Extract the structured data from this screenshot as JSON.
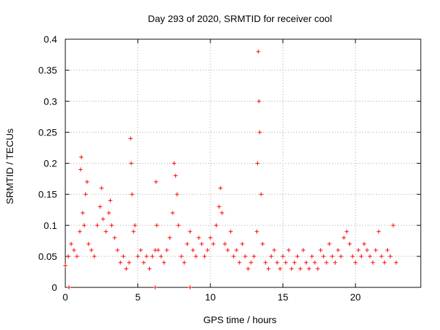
{
  "chart_data": {
    "type": "scatter",
    "title": "Day 293 of 2020, SRMTID for receiver cool",
    "xlabel": "GPS time / hours",
    "ylabel": "SRMTID / TECUs",
    "xlim": [
      0,
      24.5
    ],
    "ylim": [
      0,
      0.4
    ],
    "xticks": [
      0,
      5,
      10,
      15,
      20
    ],
    "xtick_labels": [
      "0",
      "5",
      "10",
      "15",
      "20"
    ],
    "yticks": [
      0,
      0.05,
      0.1,
      0.15,
      0.2,
      0.25,
      0.3,
      0.35,
      0.4
    ],
    "ytick_labels": [
      "0",
      "0.05",
      "0.1",
      "0.15",
      "0.2",
      "0.25",
      "0.3",
      "0.35",
      "0.4"
    ],
    "grid": true,
    "marker": "+",
    "color": "#ff0000",
    "series": [
      {
        "name": "SRMTID",
        "x": [
          0.0,
          0.2,
          0.4,
          0.6,
          0.8,
          1.0,
          1.05,
          1.1,
          1.2,
          1.3,
          1.4,
          1.5,
          1.6,
          1.8,
          2.0,
          2.2,
          2.4,
          2.5,
          2.6,
          2.8,
          3.0,
          3.1,
          3.2,
          3.4,
          3.6,
          3.8,
          4.0,
          4.2,
          4.4,
          4.5,
          4.55,
          4.6,
          4.7,
          4.8,
          5.0,
          5.2,
          5.4,
          5.6,
          5.8,
          6.0,
          6.2,
          6.25,
          6.3,
          6.4,
          6.6,
          6.8,
          7.0,
          7.2,
          7.4,
          7.5,
          7.6,
          7.7,
          7.8,
          8.0,
          8.2,
          8.4,
          8.6,
          8.8,
          9.0,
          9.2,
          9.4,
          9.6,
          9.8,
          10.0,
          10.2,
          10.4,
          10.6,
          10.7,
          10.8,
          11.0,
          11.2,
          11.4,
          11.6,
          11.8,
          12.0,
          12.2,
          12.4,
          12.6,
          12.8,
          13.0,
          13.2,
          13.25,
          13.3,
          13.35,
          13.4,
          13.5,
          13.6,
          13.8,
          14.0,
          14.2,
          14.4,
          14.6,
          14.8,
          15.0,
          15.2,
          15.4,
          15.6,
          15.8,
          16.0,
          16.2,
          16.4,
          16.6,
          16.8,
          17.0,
          17.2,
          17.4,
          17.6,
          17.8,
          18.0,
          18.2,
          18.4,
          18.6,
          18.8,
          19.0,
          19.2,
          19.4,
          19.6,
          19.8,
          20.0,
          20.2,
          20.4,
          20.6,
          20.8,
          21.0,
          21.2,
          21.4,
          21.6,
          21.8,
          22.0,
          22.2,
          22.4,
          22.6,
          22.8
        ],
        "y": [
          0.035,
          0.05,
          0.07,
          0.06,
          0.05,
          0.09,
          0.19,
          0.21,
          0.12,
          0.1,
          0.15,
          0.17,
          0.07,
          0.06,
          0.05,
          0.1,
          0.13,
          0.16,
          0.11,
          0.09,
          0.12,
          0.14,
          0.1,
          0.08,
          0.06,
          0.04,
          0.05,
          0.03,
          0.04,
          0.24,
          0.2,
          0.15,
          0.09,
          0.1,
          0.05,
          0.06,
          0.04,
          0.05,
          0.03,
          0.05,
          0.06,
          0.17,
          0.1,
          0.06,
          0.05,
          0.04,
          0.06,
          0.08,
          0.12,
          0.2,
          0.18,
          0.15,
          0.1,
          0.05,
          0.04,
          0.07,
          0.09,
          0.06,
          0.05,
          0.08,
          0.07,
          0.05,
          0.06,
          0.08,
          0.07,
          0.1,
          0.13,
          0.16,
          0.12,
          0.07,
          0.06,
          0.09,
          0.05,
          0.06,
          0.04,
          0.07,
          0.05,
          0.03,
          0.04,
          0.05,
          0.09,
          0.2,
          0.38,
          0.3,
          0.25,
          0.15,
          0.07,
          0.04,
          0.03,
          0.05,
          0.06,
          0.04,
          0.03,
          0.05,
          0.04,
          0.06,
          0.03,
          0.04,
          0.05,
          0.03,
          0.06,
          0.04,
          0.03,
          0.05,
          0.04,
          0.03,
          0.06,
          0.05,
          0.04,
          0.07,
          0.05,
          0.04,
          0.06,
          0.05,
          0.08,
          0.09,
          0.07,
          0.05,
          0.04,
          0.06,
          0.05,
          0.07,
          0.06,
          0.05,
          0.04,
          0.06,
          0.09,
          0.05,
          0.04,
          0.06,
          0.05,
          0.1,
          0.04
        ]
      }
    ],
    "zero_markers_x": [
      0.25,
      6.2,
      8.6
    ]
  }
}
